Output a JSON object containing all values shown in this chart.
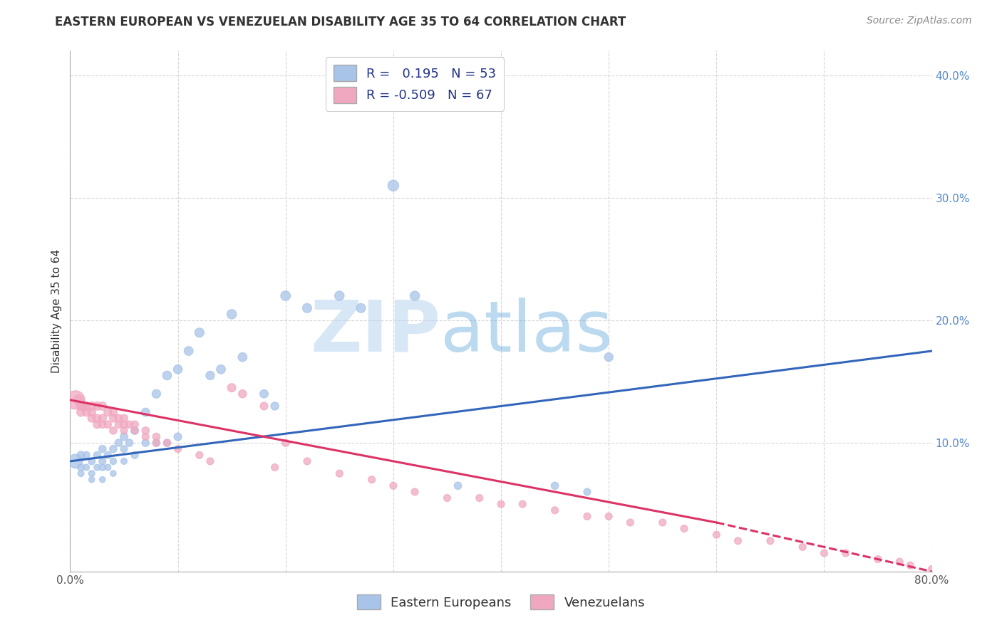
{
  "title": "EASTERN EUROPEAN VS VENEZUELAN DISABILITY AGE 35 TO 64 CORRELATION CHART",
  "source": "Source: ZipAtlas.com",
  "ylabel": "Disability Age 35 to 64",
  "xlim": [
    0.0,
    0.8
  ],
  "ylim": [
    -0.005,
    0.42
  ],
  "xticks": [
    0.0,
    0.1,
    0.2,
    0.3,
    0.4,
    0.5,
    0.6,
    0.7,
    0.8
  ],
  "xticklabels": [
    "0.0%",
    "",
    "",
    "",
    "",
    "",
    "",
    "",
    "80.0%"
  ],
  "yticks": [
    0.1,
    0.2,
    0.3,
    0.4
  ],
  "yticklabels": [
    "10.0%",
    "20.0%",
    "30.0%",
    "40.0%"
  ],
  "legend_r_blue": " 0.195",
  "legend_n_blue": "53",
  "legend_r_pink": "-0.509",
  "legend_n_pink": "67",
  "blue_color": "#a8c4e8",
  "pink_color": "#f0a8c0",
  "blue_line_color": "#3366bb",
  "pink_line_color": "#dd3366",
  "legend_label_blue": "Eastern Europeans",
  "legend_label_pink": "Venezuelans",
  "background_color": "#ffffff",
  "grid_color": "#cccccc",
  "watermark_color": "#c8dff0",
  "blue_scatter_x": [
    0.005,
    0.01,
    0.01,
    0.01,
    0.015,
    0.015,
    0.02,
    0.02,
    0.02,
    0.025,
    0.025,
    0.03,
    0.03,
    0.03,
    0.03,
    0.035,
    0.035,
    0.04,
    0.04,
    0.04,
    0.045,
    0.05,
    0.05,
    0.05,
    0.055,
    0.06,
    0.06,
    0.07,
    0.07,
    0.08,
    0.08,
    0.09,
    0.09,
    0.1,
    0.1,
    0.11,
    0.12,
    0.13,
    0.14,
    0.15,
    0.16,
    0.18,
    0.19,
    0.2,
    0.22,
    0.25,
    0.27,
    0.3,
    0.32,
    0.36,
    0.45,
    0.48,
    0.5
  ],
  "blue_scatter_y": [
    0.085,
    0.09,
    0.08,
    0.075,
    0.09,
    0.08,
    0.085,
    0.075,
    0.07,
    0.09,
    0.08,
    0.095,
    0.085,
    0.08,
    0.07,
    0.09,
    0.08,
    0.095,
    0.085,
    0.075,
    0.1,
    0.105,
    0.095,
    0.085,
    0.1,
    0.11,
    0.09,
    0.125,
    0.1,
    0.14,
    0.1,
    0.155,
    0.1,
    0.16,
    0.105,
    0.175,
    0.19,
    0.155,
    0.16,
    0.205,
    0.17,
    0.14,
    0.13,
    0.22,
    0.21,
    0.22,
    0.21,
    0.31,
    0.22,
    0.065,
    0.065,
    0.06,
    0.17
  ],
  "blue_scatter_size": [
    200,
    60,
    50,
    40,
    50,
    40,
    50,
    40,
    35,
    50,
    40,
    55,
    50,
    45,
    35,
    50,
    40,
    55,
    45,
    35,
    55,
    60,
    50,
    40,
    55,
    60,
    50,
    70,
    55,
    75,
    55,
    80,
    55,
    80,
    60,
    80,
    85,
    75,
    80,
    90,
    80,
    70,
    65,
    95,
    85,
    90,
    85,
    120,
    90,
    55,
    55,
    50,
    75
  ],
  "pink_scatter_x": [
    0.005,
    0.008,
    0.01,
    0.01,
    0.012,
    0.015,
    0.015,
    0.02,
    0.02,
    0.02,
    0.025,
    0.025,
    0.025,
    0.03,
    0.03,
    0.03,
    0.035,
    0.035,
    0.04,
    0.04,
    0.04,
    0.045,
    0.045,
    0.05,
    0.05,
    0.05,
    0.055,
    0.06,
    0.06,
    0.07,
    0.07,
    0.08,
    0.08,
    0.09,
    0.1,
    0.12,
    0.13,
    0.15,
    0.16,
    0.18,
    0.19,
    0.2,
    0.22,
    0.25,
    0.28,
    0.3,
    0.32,
    0.35,
    0.38,
    0.4,
    0.42,
    0.45,
    0.48,
    0.5,
    0.52,
    0.55,
    0.57,
    0.6,
    0.62,
    0.65,
    0.68,
    0.7,
    0.72,
    0.75,
    0.77,
    0.78,
    0.8
  ],
  "pink_scatter_y": [
    0.135,
    0.135,
    0.13,
    0.125,
    0.13,
    0.13,
    0.125,
    0.13,
    0.125,
    0.12,
    0.13,
    0.12,
    0.115,
    0.13,
    0.12,
    0.115,
    0.125,
    0.115,
    0.125,
    0.12,
    0.11,
    0.12,
    0.115,
    0.12,
    0.115,
    0.11,
    0.115,
    0.115,
    0.11,
    0.11,
    0.105,
    0.105,
    0.1,
    0.1,
    0.095,
    0.09,
    0.085,
    0.145,
    0.14,
    0.13,
    0.08,
    0.1,
    0.085,
    0.075,
    0.07,
    0.065,
    0.06,
    0.055,
    0.055,
    0.05,
    0.05,
    0.045,
    0.04,
    0.04,
    0.035,
    0.035,
    0.03,
    0.025,
    0.02,
    0.02,
    0.015,
    0.01,
    0.01,
    0.005,
    0.003,
    0.0,
    -0.003
  ],
  "pink_scatter_size": [
    350,
    100,
    80,
    70,
    80,
    70,
    65,
    75,
    65,
    60,
    70,
    65,
    60,
    70,
    65,
    55,
    65,
    55,
    65,
    60,
    55,
    60,
    55,
    60,
    55,
    50,
    55,
    55,
    50,
    55,
    50,
    55,
    50,
    50,
    50,
    50,
    50,
    70,
    65,
    60,
    50,
    55,
    50,
    50,
    50,
    50,
    50,
    50,
    50,
    50,
    50,
    50,
    50,
    50,
    50,
    50,
    50,
    50,
    50,
    50,
    50,
    50,
    50,
    50,
    50,
    50,
    50
  ],
  "title_fontsize": 12,
  "axis_label_fontsize": 11,
  "tick_fontsize": 11,
  "blue_line_x0": 0.0,
  "blue_line_x1": 0.8,
  "blue_line_y0": 0.085,
  "blue_line_y1": 0.175,
  "pink_line_x0": 0.0,
  "pink_line_x1": 0.6,
  "pink_line_xd0": 0.6,
  "pink_line_xd1": 0.8,
  "pink_line_y0": 0.135,
  "pink_line_y1": 0.035,
  "pink_line_yd0": 0.035,
  "pink_line_yd1": -0.005
}
